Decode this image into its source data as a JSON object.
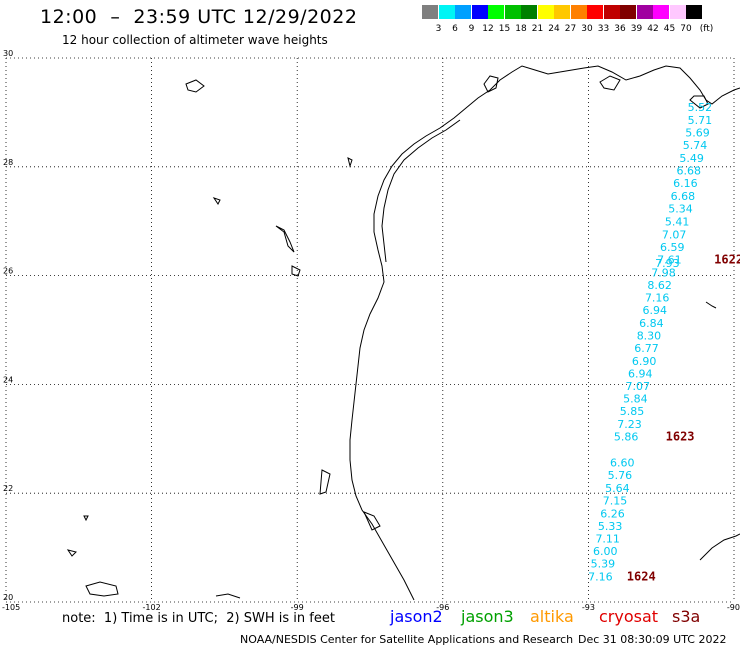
{
  "title": "12:00  –  23:59 UTC 12/29/2022",
  "subtitle": "12 hour collection of altimeter wave heights",
  "colorbar": {
    "unit": "(ft)",
    "colors": [
      "#7f7f7f",
      "#00f5f5",
      "#00a0ff",
      "#0000ff",
      "#00ff00",
      "#00c000",
      "#008000",
      "#ffff00",
      "#ffc800",
      "#ff8000",
      "#ff0000",
      "#c00000",
      "#800000",
      "#a000a0",
      "#ff00ff",
      "#ffc8ff",
      "#000000"
    ],
    "labels": [
      "3",
      "6",
      "9",
      "12",
      "15",
      "18",
      "21",
      "24",
      "27",
      "30",
      "33",
      "36",
      "39",
      "42",
      "45",
      "70"
    ]
  },
  "map": {
    "lon_range": [
      -105,
      -90
    ],
    "lat_range": [
      20,
      30
    ],
    "lon_ticks": [
      {
        "v": -105,
        "t": "-105"
      },
      {
        "v": -102,
        "t": "-102"
      },
      {
        "v": -99,
        "t": "-99"
      },
      {
        "v": -96,
        "t": "-96"
      },
      {
        "v": -93,
        "t": "-93"
      },
      {
        "v": -90,
        "t": "-90"
      }
    ],
    "lat_ticks": [
      {
        "v": 30,
        "t": "30"
      },
      {
        "v": 28,
        "t": "28"
      },
      {
        "v": 26,
        "t": "26"
      },
      {
        "v": 24,
        "t": "24"
      },
      {
        "v": 22,
        "t": "22"
      },
      {
        "v": 20,
        "t": "20"
      }
    ]
  },
  "track": {
    "color": "#00c8f0",
    "points": [
      {
        "lon": -90.45,
        "lat": 29.1,
        "t": "5.52"
      },
      {
        "lon": -90.45,
        "lat": 28.86,
        "t": "5.71"
      },
      {
        "lon": -90.5,
        "lat": 28.63,
        "t": "5.69"
      },
      {
        "lon": -90.55,
        "lat": 28.4,
        "t": "5.74"
      },
      {
        "lon": -90.62,
        "lat": 28.16,
        "t": "5.49"
      },
      {
        "lon": -90.68,
        "lat": 27.93,
        "t": "6.68"
      },
      {
        "lon": -90.75,
        "lat": 27.7,
        "t": "6.16"
      },
      {
        "lon": -90.8,
        "lat": 27.46,
        "t": "6.68"
      },
      {
        "lon": -90.85,
        "lat": 27.23,
        "t": "5.34"
      },
      {
        "lon": -90.92,
        "lat": 26.99,
        "t": "5.41"
      },
      {
        "lon": -90.98,
        "lat": 26.76,
        "t": "7.07"
      },
      {
        "lon": -91.02,
        "lat": 26.53,
        "t": "6.59"
      },
      {
        "lon": -91.08,
        "lat": 26.3,
        "t": "7.61"
      },
      {
        "lon": -91.12,
        "lat": 26.23,
        "t": "7.93"
      },
      {
        "lon": -91.2,
        "lat": 26.06,
        "t": "7.98"
      },
      {
        "lon": -91.28,
        "lat": 25.83,
        "t": "8.62"
      },
      {
        "lon": -91.33,
        "lat": 25.6,
        "t": "7.16"
      },
      {
        "lon": -91.38,
        "lat": 25.37,
        "t": "6.94"
      },
      {
        "lon": -91.45,
        "lat": 25.13,
        "t": "6.84"
      },
      {
        "lon": -91.5,
        "lat": 24.9,
        "t": "8.30"
      },
      {
        "lon": -91.55,
        "lat": 24.67,
        "t": "6.77"
      },
      {
        "lon": -91.6,
        "lat": 24.43,
        "t": "6.90"
      },
      {
        "lon": -91.68,
        "lat": 24.2,
        "t": "6.94"
      },
      {
        "lon": -91.73,
        "lat": 23.97,
        "t": "7.07"
      },
      {
        "lon": -91.78,
        "lat": 23.74,
        "t": "5.84"
      },
      {
        "lon": -91.85,
        "lat": 23.51,
        "t": "5.85"
      },
      {
        "lon": -91.9,
        "lat": 23.27,
        "t": "7.23"
      },
      {
        "lon": -91.97,
        "lat": 23.04,
        "t": "5.86"
      },
      {
        "lon": -92.05,
        "lat": 22.56,
        "t": "6.60"
      },
      {
        "lon": -92.1,
        "lat": 22.33,
        "t": "5.76"
      },
      {
        "lon": -92.15,
        "lat": 22.1,
        "t": "5.64"
      },
      {
        "lon": -92.2,
        "lat": 21.87,
        "t": "7.15"
      },
      {
        "lon": -92.25,
        "lat": 21.63,
        "t": "6.26"
      },
      {
        "lon": -92.3,
        "lat": 21.4,
        "t": "5.33"
      },
      {
        "lon": -92.35,
        "lat": 21.17,
        "t": "7.11"
      },
      {
        "lon": -92.4,
        "lat": 20.94,
        "t": "6.00"
      },
      {
        "lon": -92.45,
        "lat": 20.71,
        "t": "5.39"
      },
      {
        "lon": -92.5,
        "lat": 20.47,
        "t": "7.16"
      }
    ]
  },
  "time_labels": {
    "color": "#800000",
    "items": [
      {
        "lon": -90.45,
        "lat": 26.3,
        "t": "1622"
      },
      {
        "lon": -91.45,
        "lat": 23.04,
        "t": "1623"
      },
      {
        "lon": -92.25,
        "lat": 20.47,
        "t": "1624"
      }
    ]
  },
  "footer": {
    "note": "note:  1) Time is in UTC;  2) SWH is in feet",
    "credit": "NOAA/NESDIS Center for Satellite Applications and Research",
    "issued": "Dec 31 08:30:09 UTC 2022",
    "satellites": [
      {
        "name": "jason2",
        "color": "#0000ff"
      },
      {
        "name": "jason3",
        "color": "#00a000"
      },
      {
        "name": "altika",
        "color": "#ff9900"
      },
      {
        "name": "cryosat",
        "color": "#e00000"
      },
      {
        "name": "s3a",
        "color": "#800000"
      }
    ]
  }
}
